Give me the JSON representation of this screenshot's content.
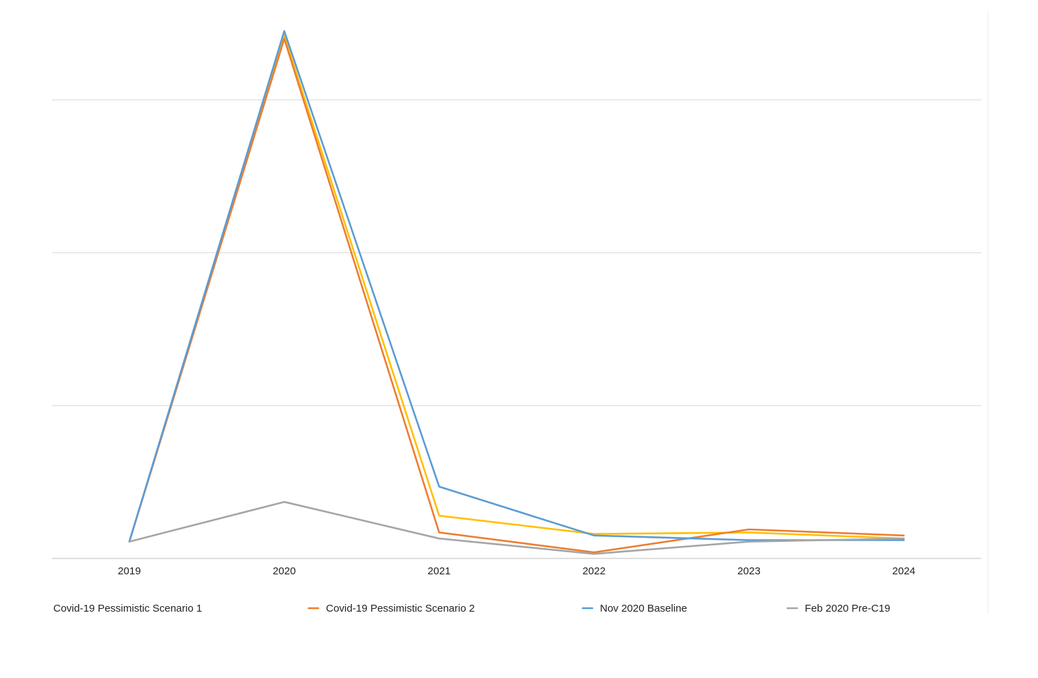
{
  "chart_data": {
    "type": "line",
    "title": "",
    "xlabel": "",
    "ylabel": "",
    "x": [
      "2019",
      "2020",
      "2021",
      "2022",
      "2023",
      "2024"
    ],
    "ylim": [
      0,
      3.45
    ],
    "y_gridlines": [
      0,
      1,
      2,
      3
    ],
    "y_tick_labels_shown": false,
    "grid": true,
    "legend_position": "bottom",
    "series": [
      {
        "name": "Covid-19 Pessimistic Scenario 1",
        "color": "#FFC000",
        "values": [
          0.11,
          3.42,
          0.28,
          0.16,
          0.17,
          0.13
        ]
      },
      {
        "name": "Covid-19 Pessimistic Scenario 2",
        "color": "#ED7D31",
        "values": [
          0.11,
          3.4,
          0.17,
          0.04,
          0.19,
          0.15
        ]
      },
      {
        "name": "Nov 2020 Baseline",
        "color": "#5B9BD5",
        "values": [
          0.11,
          3.45,
          0.47,
          0.15,
          0.12,
          0.12
        ]
      },
      {
        "name": "Feb 2020 Pre-C19",
        "color": "#A5A5A5",
        "values": [
          0.11,
          0.37,
          0.13,
          0.03,
          0.11,
          0.13
        ]
      }
    ]
  }
}
